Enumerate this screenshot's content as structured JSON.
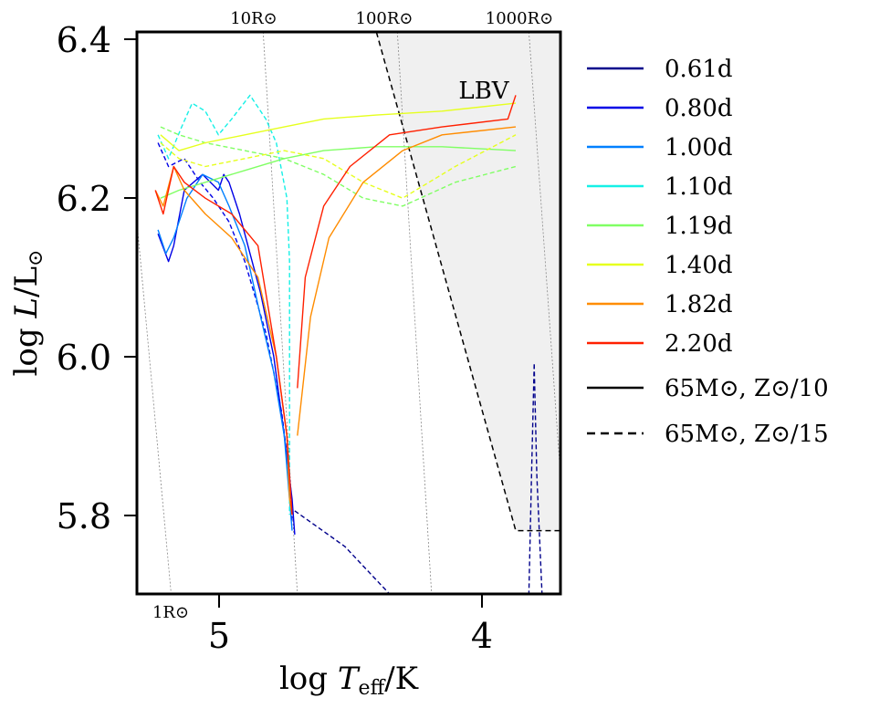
{
  "chart_data": {
    "type": "line",
    "xlabel": "log T_eff/K",
    "ylabel": "log L/L_⊙",
    "xlim": [
      5.31,
      3.7
    ],
    "ylim": [
      5.7,
      6.41
    ],
    "x_inverted": true,
    "grid": false,
    "legend_position": "right, outside plot",
    "xticks": [
      {
        "value": 5.0,
        "label": "5"
      },
      {
        "value": 4.0,
        "label": "4"
      }
    ],
    "yticks": [
      {
        "value": 5.8,
        "label": "5.8"
      },
      {
        "value": 6.0,
        "label": "6.0"
      },
      {
        "value": 6.2,
        "label": "6.2"
      },
      {
        "value": 6.4,
        "label": "6.4"
      }
    ],
    "radius_lines": [
      {
        "label": "1R⊙",
        "points": [
          [
            5.31,
            6.17
          ],
          [
            5.18,
            5.7
          ]
        ]
      },
      {
        "label": "10R⊙",
        "points": [
          [
            4.83,
            6.41
          ],
          [
            4.7,
            5.7
          ]
        ]
      },
      {
        "label": "100R⊙",
        "points": [
          [
            4.32,
            6.41
          ],
          [
            4.19,
            5.7
          ]
        ]
      },
      {
        "label": "1000R⊙",
        "points": [
          [
            3.82,
            6.41
          ],
          [
            3.7,
            5.85
          ]
        ]
      }
    ],
    "lbv_region": {
      "label": "LBV",
      "boundary": [
        [
          4.4,
          6.41
        ],
        [
          3.87,
          5.78
        ],
        [
          3.7,
          5.78
        ]
      ]
    },
    "style_legend": [
      {
        "label": "65M⊙, Z⊙/10",
        "style": "solid",
        "color": "#000000"
      },
      {
        "label": "65M⊙, Z⊙/15",
        "style": "dashed",
        "color": "#000000"
      }
    ],
    "series": [
      {
        "name": "0.61d",
        "color": "#00008b",
        "style": "dashed",
        "points": [
          [
            4.71,
            5.805
          ],
          [
            4.52,
            5.76
          ],
          [
            4.35,
            5.7
          ]
        ],
        "points2": [
          [
            3.8,
            5.99
          ],
          [
            3.81,
            5.85
          ],
          [
            3.82,
            5.7
          ]
        ],
        "points3": [
          [
            3.8,
            5.99
          ],
          [
            3.79,
            5.85
          ],
          [
            3.77,
            5.7
          ]
        ]
      },
      {
        "name": "0.80d",
        "color": "#0000e6",
        "style": "solid",
        "points": [
          [
            5.23,
            6.155
          ],
          [
            5.19,
            6.12
          ],
          [
            5.17,
            6.14
          ],
          [
            5.13,
            6.21
          ],
          [
            5.06,
            6.23
          ],
          [
            5.0,
            6.21
          ],
          [
            4.98,
            6.23
          ],
          [
            4.96,
            6.22
          ],
          [
            4.92,
            6.18
          ],
          [
            4.88,
            6.13
          ],
          [
            4.84,
            6.08
          ],
          [
            4.79,
            6.0
          ],
          [
            4.75,
            5.9
          ],
          [
            4.72,
            5.82
          ],
          [
            4.71,
            5.775
          ]
        ]
      },
      {
        "name": "0.80d dashed",
        "color": "#0000e6",
        "style": "dashed",
        "points": [
          [
            5.23,
            6.27
          ],
          [
            5.19,
            6.24
          ],
          [
            5.13,
            6.25
          ],
          [
            5.07,
            6.22
          ],
          [
            5.02,
            6.2
          ],
          [
            4.96,
            6.17
          ],
          [
            4.9,
            6.12
          ],
          [
            4.82,
            6.03
          ],
          [
            4.76,
            5.93
          ],
          [
            4.73,
            5.85
          ],
          [
            4.72,
            5.79
          ]
        ]
      },
      {
        "name": "1.00d",
        "color": "#0080ff",
        "style": "solid",
        "points": [
          [
            5.23,
            6.16
          ],
          [
            5.2,
            6.13
          ],
          [
            5.17,
            6.15
          ],
          [
            5.12,
            6.2
          ],
          [
            5.06,
            6.23
          ],
          [
            5.0,
            6.22
          ],
          [
            4.96,
            6.19
          ],
          [
            4.9,
            6.14
          ],
          [
            4.84,
            6.05
          ],
          [
            4.79,
            5.98
          ],
          [
            4.75,
            5.9
          ],
          [
            4.73,
            5.82
          ],
          [
            4.72,
            5.78
          ]
        ]
      },
      {
        "name": "1.10d",
        "color": "#15f0e6",
        "style": "dashed",
        "points": [
          [
            5.23,
            6.28
          ],
          [
            5.19,
            6.25
          ],
          [
            5.14,
            6.29
          ],
          [
            5.1,
            6.32
          ],
          [
            5.05,
            6.31
          ],
          [
            5.0,
            6.28
          ],
          [
            4.95,
            6.3
          ],
          [
            4.88,
            6.33
          ],
          [
            4.82,
            6.3
          ],
          [
            4.78,
            6.27
          ],
          [
            4.74,
            6.2
          ],
          [
            4.73,
            6.12
          ],
          [
            4.73,
            6.0
          ],
          [
            4.73,
            5.9
          ],
          [
            4.73,
            5.8
          ]
        ]
      },
      {
        "name": "1.19d",
        "color": "#80ff64",
        "style": "solid",
        "points": [
          [
            5.22,
            6.2
          ],
          [
            5.15,
            6.21
          ],
          [
            5.05,
            6.22
          ],
          [
            4.9,
            6.235
          ],
          [
            4.75,
            6.25
          ],
          [
            4.6,
            6.26
          ],
          [
            4.4,
            6.265
          ],
          [
            4.15,
            6.265
          ],
          [
            3.87,
            6.26
          ]
        ]
      },
      {
        "name": "1.19d dashed",
        "color": "#80ff64",
        "style": "dashed",
        "points": [
          [
            5.22,
            6.29
          ],
          [
            5.15,
            6.28
          ],
          [
            5.05,
            6.27
          ],
          [
            4.9,
            6.26
          ],
          [
            4.75,
            6.25
          ],
          [
            4.6,
            6.23
          ],
          [
            4.45,
            6.2
          ],
          [
            4.3,
            6.19
          ],
          [
            4.1,
            6.22
          ],
          [
            3.87,
            6.24
          ]
        ]
      },
      {
        "name": "1.40d",
        "color": "#e6ff1e",
        "style": "solid",
        "points": [
          [
            5.22,
            6.28
          ],
          [
            5.15,
            6.26
          ],
          [
            5.05,
            6.27
          ],
          [
            4.9,
            6.28
          ],
          [
            4.75,
            6.29
          ],
          [
            4.6,
            6.3
          ],
          [
            4.4,
            6.305
          ],
          [
            4.15,
            6.31
          ],
          [
            3.87,
            6.32
          ]
        ]
      },
      {
        "name": "1.40d dashed",
        "color": "#e6ff1e",
        "style": "dashed",
        "points": [
          [
            5.22,
            6.27
          ],
          [
            5.15,
            6.25
          ],
          [
            5.05,
            6.24
          ],
          [
            4.9,
            6.25
          ],
          [
            4.75,
            6.26
          ],
          [
            4.6,
            6.25
          ],
          [
            4.45,
            6.22
          ],
          [
            4.3,
            6.2
          ],
          [
            4.1,
            6.24
          ],
          [
            3.87,
            6.28
          ]
        ]
      },
      {
        "name": "1.82d",
        "color": "#ff8c00",
        "style": "solid",
        "points": [
          [
            5.24,
            6.21
          ],
          [
            5.21,
            6.19
          ],
          [
            5.17,
            6.24
          ],
          [
            5.13,
            6.21
          ],
          [
            5.05,
            6.18
          ],
          [
            4.95,
            6.15
          ],
          [
            4.85,
            6.1
          ],
          [
            4.78,
            6.0
          ],
          [
            4.74,
            5.9
          ],
          [
            4.73,
            5.82
          ],
          [
            4.72,
            5.8
          ]
        ],
        "points2": [
          [
            4.7,
            5.9
          ],
          [
            4.65,
            6.05
          ],
          [
            4.58,
            6.15
          ],
          [
            4.45,
            6.22
          ],
          [
            4.3,
            6.26
          ],
          [
            4.15,
            6.28
          ],
          [
            3.87,
            6.29
          ]
        ]
      },
      {
        "name": "2.20d",
        "color": "#ff2000",
        "style": "solid",
        "points": [
          [
            5.24,
            6.21
          ],
          [
            5.21,
            6.18
          ],
          [
            5.17,
            6.24
          ],
          [
            5.13,
            6.22
          ],
          [
            5.05,
            6.2
          ],
          [
            4.95,
            6.18
          ],
          [
            4.85,
            6.14
          ],
          [
            4.78,
            6.0
          ],
          [
            4.74,
            5.9
          ],
          [
            4.72,
            5.8
          ]
        ],
        "points2": [
          [
            4.7,
            5.96
          ],
          [
            4.67,
            6.1
          ],
          [
            4.6,
            6.19
          ],
          [
            4.5,
            6.24
          ],
          [
            4.35,
            6.28
          ],
          [
            4.15,
            6.29
          ],
          [
            3.9,
            6.3
          ],
          [
            3.87,
            6.33
          ]
        ]
      }
    ]
  },
  "labels": {
    "xlabel": "log T_eff/K",
    "ylabel": "log L/L⊙",
    "xtick_5": "5",
    "xtick_4": "4",
    "ytick_58": "5.8",
    "ytick_60": "6.0",
    "ytick_62": "6.2",
    "ytick_64": "6.4",
    "r1": "1R⊙",
    "r10": "10R⊙",
    "r100": "100R⊙",
    "r1000": "1000R⊙",
    "lbv": "LBV",
    "legend": [
      "0.61d",
      "0.80d",
      "1.00d",
      "1.10d",
      "1.19d",
      "1.40d",
      "1.82d",
      "2.20d",
      "65M⊙, Z⊙/10",
      "65M⊙, Z⊙/15"
    ]
  }
}
